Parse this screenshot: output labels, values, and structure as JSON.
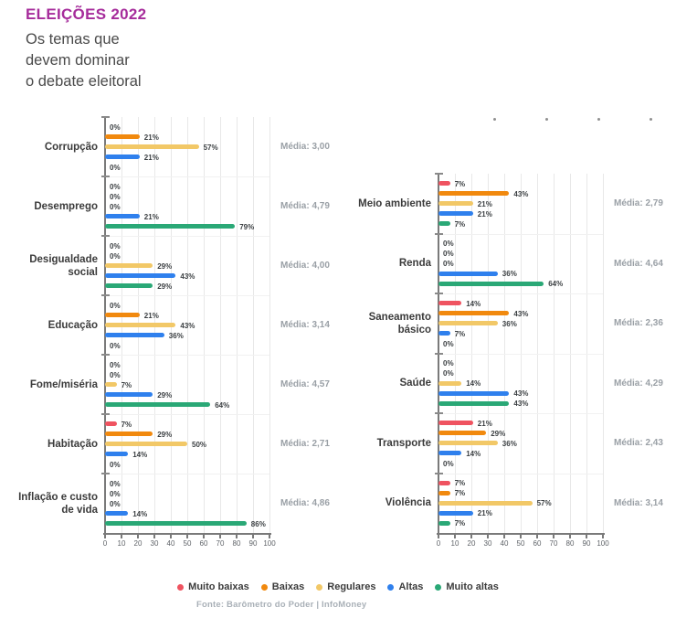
{
  "header": {
    "kicker": "ELEIÇÕES 2022",
    "title_lines": [
      "Os temas que",
      "devem dominar",
      "o debate eleitoral"
    ]
  },
  "legend": [
    {
      "label": "Muito baixas",
      "color": "#ef5360"
    },
    {
      "label": "Baixas",
      "color": "#f1890e"
    },
    {
      "label": "Regulares",
      "color": "#f2c867"
    },
    {
      "label": "Altas",
      "color": "#2f80ed"
    },
    {
      "label": "Muito altas",
      "color": "#2aa876"
    }
  ],
  "footer": {
    "source": "Fonte: Barômetro do Poder | InfoMoney"
  },
  "colors": {
    "accent": "#a62c9b",
    "media_text": "#9aa0a6",
    "grid": "#e8e8e8",
    "axis": "#7a7a7a"
  },
  "chart_data": {
    "type": "bar",
    "orientation": "horizontal",
    "title": "ELEIÇÕES 2022 — Os temas que devem dominar o debate eleitoral",
    "unit": "%",
    "levels": [
      "Muito baixas",
      "Baixas",
      "Regulares",
      "Altas",
      "Muito altas"
    ],
    "xlim": [
      0,
      100
    ],
    "x_ticks": [
      0,
      10,
      20,
      30,
      40,
      50,
      60,
      70,
      80,
      90,
      100
    ],
    "grid": true,
    "legend_position": "bottom",
    "columns": [
      {
        "categories": [
          {
            "label": "Corrupção",
            "values": [
              0,
              21,
              57,
              21,
              0
            ],
            "media_label": "Média: 3,00"
          },
          {
            "label": "Desemprego",
            "values": [
              0,
              0,
              0,
              21,
              79
            ],
            "media_label": "Média: 4,79"
          },
          {
            "label": "Desigualdade\nsocial",
            "values": [
              0,
              0,
              29,
              43,
              29
            ],
            "media_label": "Média: 4,00"
          },
          {
            "label": "Educação",
            "values": [
              0,
              21,
              43,
              36,
              0
            ],
            "media_label": "Média: 3,14"
          },
          {
            "label": "Fome/miséria",
            "values": [
              0,
              0,
              7,
              29,
              64
            ],
            "media_label": "Média: 4,57"
          },
          {
            "label": "Habitação",
            "values": [
              7,
              29,
              50,
              14,
              0
            ],
            "media_label": "Média: 2,71"
          },
          {
            "label": "Inflação e custo\nde vida",
            "values": [
              0,
              0,
              0,
              14,
              86
            ],
            "media_label": "Média: 4,86"
          }
        ]
      },
      {
        "categories": [
          {
            "label": "Meio ambiente",
            "values": [
              7,
              43,
              21,
              21,
              7
            ],
            "media_label": "Média: 2,79"
          },
          {
            "label": "Renda",
            "values": [
              0,
              0,
              0,
              36,
              64
            ],
            "media_label": "Média: 4,64"
          },
          {
            "label": "Saneamento\nbásico",
            "values": [
              14,
              43,
              36,
              7,
              0
            ],
            "media_label": "Média: 2,36"
          },
          {
            "label": "Saúde",
            "values": [
              0,
              0,
              14,
              43,
              43
            ],
            "media_label": "Média: 4,29"
          },
          {
            "label": "Transporte",
            "values": [
              21,
              29,
              36,
              14,
              0
            ],
            "media_label": "Média: 2,43"
          },
          {
            "label": "Violência",
            "values": [
              7,
              7,
              57,
              21,
              7
            ],
            "media_label": "Média: 3,14"
          }
        ]
      }
    ]
  }
}
